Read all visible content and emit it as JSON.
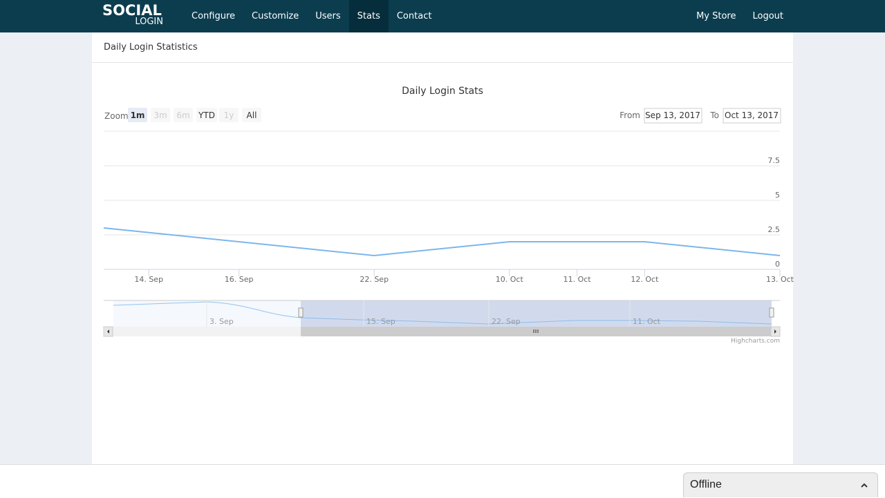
{
  "nav": {
    "logo_top": "SOCIAL",
    "logo_bottom": "LOGIN",
    "links": [
      "Configure",
      "Customize",
      "Users",
      "Stats",
      "Contact"
    ],
    "active_link": 3,
    "right_links": [
      "My Store",
      "Logout"
    ]
  },
  "panel": {
    "heading": "Daily Login Statistics"
  },
  "range_selector": {
    "zoom_label": "Zoom",
    "buttons": [
      "1m",
      "3m",
      "6m",
      "YTD",
      "1y",
      "All"
    ],
    "selected": 0,
    "disabled": [
      1,
      2,
      4
    ],
    "from_label": "From",
    "from_value": "Sep 13, 2017",
    "to_label": "To",
    "to_value": "Oct 13, 2017"
  },
  "chart_data": {
    "type": "line",
    "title": "Daily Login Stats",
    "color": "#7cb5ec",
    "categories": [
      null,
      null,
      "14. Sep",
      null,
      null,
      null,
      "16. Sep",
      null,
      null,
      null,
      null,
      null,
      "22. Sep",
      null,
      null,
      null,
      null,
      null,
      "10. Oct",
      null,
      null,
      "11. Oct",
      null,
      null,
      "12. Oct",
      null,
      null,
      null,
      null,
      null,
      "13. Oct"
    ],
    "values": [
      3,
      null,
      null,
      null,
      null,
      null,
      null,
      null,
      null,
      null,
      null,
      null,
      1,
      null,
      null,
      null,
      null,
      null,
      2,
      null,
      null,
      2,
      null,
      null,
      2,
      null,
      null,
      null,
      null,
      null,
      1
    ],
    "connect_nulls": true,
    "ylim": [
      0,
      10
    ],
    "yticks": [
      0,
      2.5,
      5,
      7.5
    ],
    "grid": true
  },
  "navigator": {
    "labels": [
      "3. Sep",
      "15. Sep",
      "22. Sep",
      "11. Oct"
    ]
  },
  "credits": "Highcharts.com",
  "chat": {
    "status": "Offline"
  }
}
